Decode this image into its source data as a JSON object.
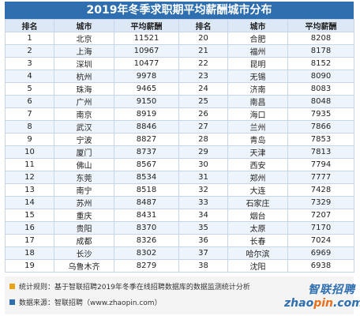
{
  "colors": {
    "accent": "#2f6fb0",
    "header_row": "#dce8f6",
    "stripe": "#eef4fb",
    "bullet_1": "#e8a317",
    "bullet_2": "#2f6fb0",
    "logo_orange": "#e8701a"
  },
  "chart_data": {
    "type": "table",
    "title": "2019年冬季求职期平均薪酬城市分布",
    "columns": [
      "排名",
      "城市",
      "平均薪酬",
      "排名",
      "城市",
      "平均薪酬"
    ],
    "rows": [
      [
        "1",
        "北京",
        "11521",
        "20",
        "合肥",
        "8208"
      ],
      [
        "2",
        "上海",
        "10967",
        "21",
        "福州",
        "8178"
      ],
      [
        "3",
        "深圳",
        "10477",
        "22",
        "昆明",
        "8152"
      ],
      [
        "4",
        "杭州",
        "9978",
        "23",
        "无锡",
        "8090"
      ],
      [
        "5",
        "珠海",
        "9465",
        "24",
        "济南",
        "8083"
      ],
      [
        "6",
        "广州",
        "9150",
        "25",
        "南昌",
        "8048"
      ],
      [
        "7",
        "南京",
        "8919",
        "26",
        "海口",
        "7935"
      ],
      [
        "8",
        "武汉",
        "8846",
        "27",
        "兰州",
        "7866"
      ],
      [
        "9",
        "宁波",
        "8827",
        "28",
        "青岛",
        "7853"
      ],
      [
        "10",
        "厦门",
        "8737",
        "29",
        "天津",
        "7813"
      ],
      [
        "11",
        "佛山",
        "8567",
        "30",
        "西安",
        "7794"
      ],
      [
        "12",
        "东莞",
        "8534",
        "31",
        "郑州",
        "7777"
      ],
      [
        "13",
        "南宁",
        "8518",
        "32",
        "大连",
        "7428"
      ],
      [
        "14",
        "苏州",
        "8487",
        "33",
        "石家庄",
        "7329"
      ],
      [
        "15",
        "重庆",
        "8431",
        "34",
        "烟台",
        "7207"
      ],
      [
        "16",
        "贵阳",
        "8370",
        "35",
        "太原",
        "7170"
      ],
      [
        "17",
        "成都",
        "8326",
        "36",
        "长春",
        "7024"
      ],
      [
        "18",
        "长沙",
        "8302",
        "37",
        "哈尔滨",
        "6969"
      ],
      [
        "19",
        "乌鲁木齐",
        "8279",
        "38",
        "沈阳",
        "6938"
      ]
    ]
  },
  "notes": [
    "统计规则：基于智联招聘2019年冬季在线招聘数据库的数据监测统计分析",
    "数据来源：智联招聘（www.zhaopin.com）"
  ],
  "logo": {
    "cn": "智联招聘",
    "url_left": "zhao",
    "url_mid": "pin",
    "url_right": ".com"
  }
}
